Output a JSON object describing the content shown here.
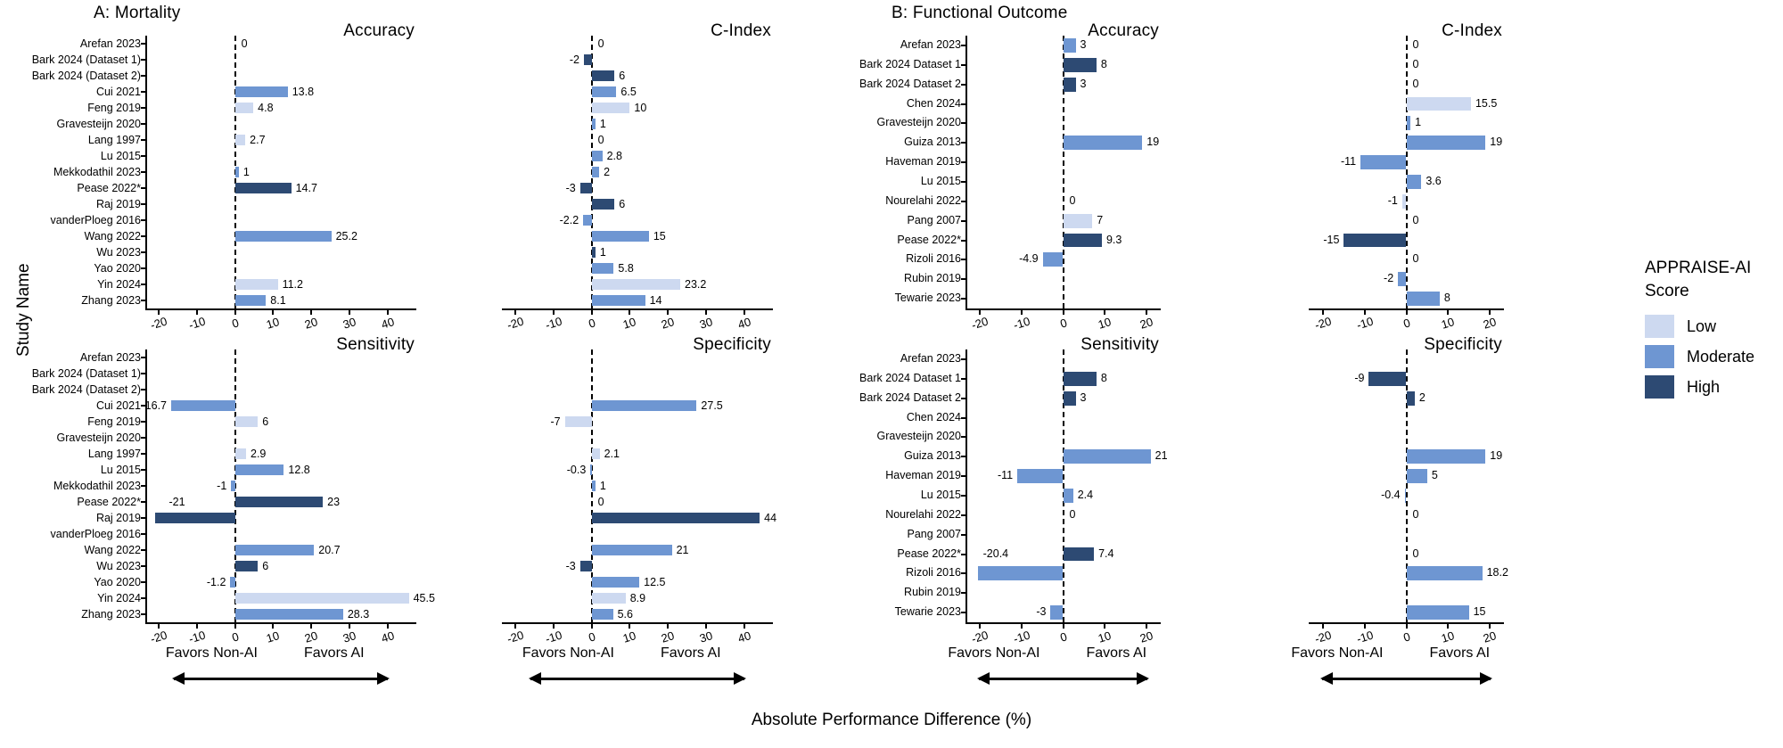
{
  "labels": {
    "ylabel": "Study Name",
    "xlabel": "Absolute Performance Difference (%)",
    "favors_left": "Favors Non-AI",
    "favors_right": "Favors AI"
  },
  "legend": {
    "title": "APPRAISE-AI Score",
    "title_lines": [
      "APPRAISE-AI",
      "Score"
    ],
    "items": [
      {
        "key": "low",
        "label": "Low",
        "color": "#cdd9f0"
      },
      {
        "key": "moderate",
        "label": "Moderate",
        "color": "#6e96d2"
      },
      {
        "key": "high",
        "label": "High",
        "color": "#2d4a73"
      }
    ]
  },
  "chart_data": [
    {
      "type": "bar",
      "orientation": "horizontal",
      "panel": "A",
      "title": "A: Mortality",
      "xlim": [
        -23,
        47
      ],
      "xticks": [
        -20,
        -10,
        0,
        10,
        20,
        30,
        40
      ],
      "grid": false,
      "categories": [
        "Arefan 2023",
        "Bark 2024 (Dataset 1)",
        "Bark 2024 (Dataset 2)",
        "Cui 2021",
        "Feng 2019",
        "Gravesteijn 2020",
        "Lang 1997",
        "Lu 2015",
        "Mekkodathil 2023",
        "Pease 2022*",
        "Raj 2019",
        "vanderPloeg 2016",
        "Wang 2022",
        "Wu 2023",
        "Yao 2020",
        "Yin 2024",
        "Zhang 2023"
      ],
      "subplots": [
        {
          "title": "Accuracy",
          "points": [
            {
              "value": 0,
              "score": "none"
            },
            null,
            null,
            {
              "value": 13.8,
              "score": "moderate"
            },
            {
              "value": 4.8,
              "score": "low"
            },
            null,
            {
              "value": 2.7,
              "score": "low"
            },
            null,
            {
              "value": 1,
              "score": "moderate"
            },
            {
              "value": 14.7,
              "score": "high"
            },
            null,
            null,
            {
              "value": 25.2,
              "score": "moderate"
            },
            null,
            null,
            {
              "value": 11.2,
              "score": "low"
            },
            {
              "value": 8.1,
              "score": "moderate"
            }
          ]
        },
        {
          "title": "C-Index",
          "points": [
            {
              "value": 0,
              "score": "none"
            },
            {
              "value": -2,
              "score": "high"
            },
            {
              "value": 6,
              "score": "high"
            },
            {
              "value": 6.5,
              "score": "moderate"
            },
            {
              "value": 10,
              "score": "low"
            },
            {
              "value": 1,
              "score": "moderate"
            },
            {
              "value": 0,
              "score": "none"
            },
            {
              "value": 2.8,
              "score": "moderate"
            },
            {
              "value": 2,
              "score": "moderate"
            },
            {
              "value": -3,
              "score": "high"
            },
            {
              "value": 6,
              "score": "high"
            },
            {
              "value": -2.2,
              "score": "moderate"
            },
            {
              "value": 15,
              "score": "moderate"
            },
            {
              "value": 1,
              "score": "high"
            },
            {
              "value": 5.8,
              "score": "moderate"
            },
            {
              "value": 23.2,
              "score": "low"
            },
            {
              "value": 14,
              "score": "moderate"
            }
          ]
        },
        {
          "title": "Sensitivity",
          "points": [
            null,
            null,
            null,
            {
              "value": -16.7,
              "score": "moderate"
            },
            {
              "value": 6,
              "score": "low"
            },
            null,
            {
              "value": 2.9,
              "score": "low"
            },
            {
              "value": 12.8,
              "score": "moderate"
            },
            {
              "value": -1,
              "score": "moderate"
            },
            {
              "value": 23,
              "score": "high"
            },
            {
              "value": -21,
              "score": "high",
              "label_above": true
            },
            null,
            {
              "value": 20.7,
              "score": "moderate"
            },
            {
              "value": 6,
              "score": "high"
            },
            {
              "value": -1.2,
              "score": "moderate"
            },
            {
              "value": 45.5,
              "score": "low"
            },
            {
              "value": 28.3,
              "score": "moderate"
            }
          ]
        },
        {
          "title": "Specificity",
          "points": [
            null,
            null,
            null,
            {
              "value": 27.5,
              "score": "moderate"
            },
            {
              "value": -7,
              "score": "low"
            },
            null,
            {
              "value": 2.1,
              "score": "low"
            },
            {
              "value": -0.3,
              "score": "moderate"
            },
            {
              "value": 1,
              "score": "moderate"
            },
            {
              "value": 0,
              "score": "none"
            },
            {
              "value": 44,
              "score": "high"
            },
            null,
            {
              "value": 21,
              "score": "moderate"
            },
            {
              "value": -3,
              "score": "high"
            },
            {
              "value": 12.5,
              "score": "moderate"
            },
            {
              "value": 8.9,
              "score": "low"
            },
            {
              "value": 5.6,
              "score": "moderate"
            }
          ]
        }
      ]
    },
    {
      "type": "bar",
      "orientation": "horizontal",
      "panel": "B",
      "title": "B: Functional Outcome",
      "xlim": [
        -23,
        23
      ],
      "xticks": [
        -20,
        -10,
        0,
        10,
        20
      ],
      "grid": false,
      "categories": [
        "Arefan 2023",
        "Bark 2024 Dataset 1",
        "Bark 2024 Dataset 2",
        "Chen 2024",
        "Gravesteijn 2020",
        "Guiza 2013",
        "Haveman 2019",
        "Lu 2015",
        "Nourelahi 2022",
        "Pang 2007",
        "Pease 2022*",
        "Rizoli 2016",
        "Rubin 2019",
        "Tewarie 2023"
      ],
      "subplots": [
        {
          "title": "Accuracy",
          "points": [
            {
              "value": 3,
              "score": "moderate"
            },
            {
              "value": 8,
              "score": "high"
            },
            {
              "value": 3,
              "score": "high"
            },
            null,
            null,
            {
              "value": 19,
              "score": "moderate"
            },
            null,
            null,
            {
              "value": 0,
              "score": "none"
            },
            {
              "value": 7,
              "score": "low"
            },
            {
              "value": 9.3,
              "score": "high"
            },
            {
              "value": -4.9,
              "score": "moderate"
            },
            null,
            null
          ]
        },
        {
          "title": "C-Index",
          "points": [
            {
              "value": 0,
              "score": "none"
            },
            {
              "value": 0,
              "score": "none"
            },
            {
              "value": 0,
              "score": "none"
            },
            {
              "value": 15.5,
              "score": "low"
            },
            {
              "value": 1,
              "score": "moderate"
            },
            {
              "value": 19,
              "score": "moderate"
            },
            {
              "value": -11,
              "score": "moderate"
            },
            {
              "value": 3.6,
              "score": "moderate"
            },
            {
              "value": -1,
              "score": "low"
            },
            {
              "value": 0,
              "score": "none"
            },
            {
              "value": -15,
              "score": "high"
            },
            {
              "value": 0,
              "score": "none"
            },
            {
              "value": -2,
              "score": "moderate"
            },
            {
              "value": 8,
              "score": "moderate"
            }
          ]
        },
        {
          "title": "Sensitivity",
          "points": [
            null,
            {
              "value": 8,
              "score": "high"
            },
            {
              "value": 3,
              "score": "high"
            },
            null,
            null,
            {
              "value": 21,
              "score": "moderate"
            },
            {
              "value": -11,
              "score": "moderate"
            },
            {
              "value": 2.4,
              "score": "moderate"
            },
            {
              "value": 0,
              "score": "none"
            },
            null,
            {
              "value": 7.4,
              "score": "high"
            },
            {
              "value": -20.4,
              "score": "moderate",
              "label_above": true
            },
            null,
            {
              "value": -3,
              "score": "moderate"
            }
          ]
        },
        {
          "title": "Specificity",
          "points": [
            null,
            {
              "value": -9,
              "score": "high"
            },
            {
              "value": 2,
              "score": "high"
            },
            null,
            null,
            {
              "value": 19,
              "score": "moderate"
            },
            {
              "value": 5,
              "score": "moderate"
            },
            {
              "value": -0.4,
              "score": "moderate"
            },
            {
              "value": 0,
              "score": "none"
            },
            null,
            {
              "value": 0,
              "score": "none"
            },
            {
              "value": 18.2,
              "score": "moderate"
            },
            null,
            {
              "value": 15,
              "score": "moderate"
            }
          ]
        }
      ]
    }
  ]
}
